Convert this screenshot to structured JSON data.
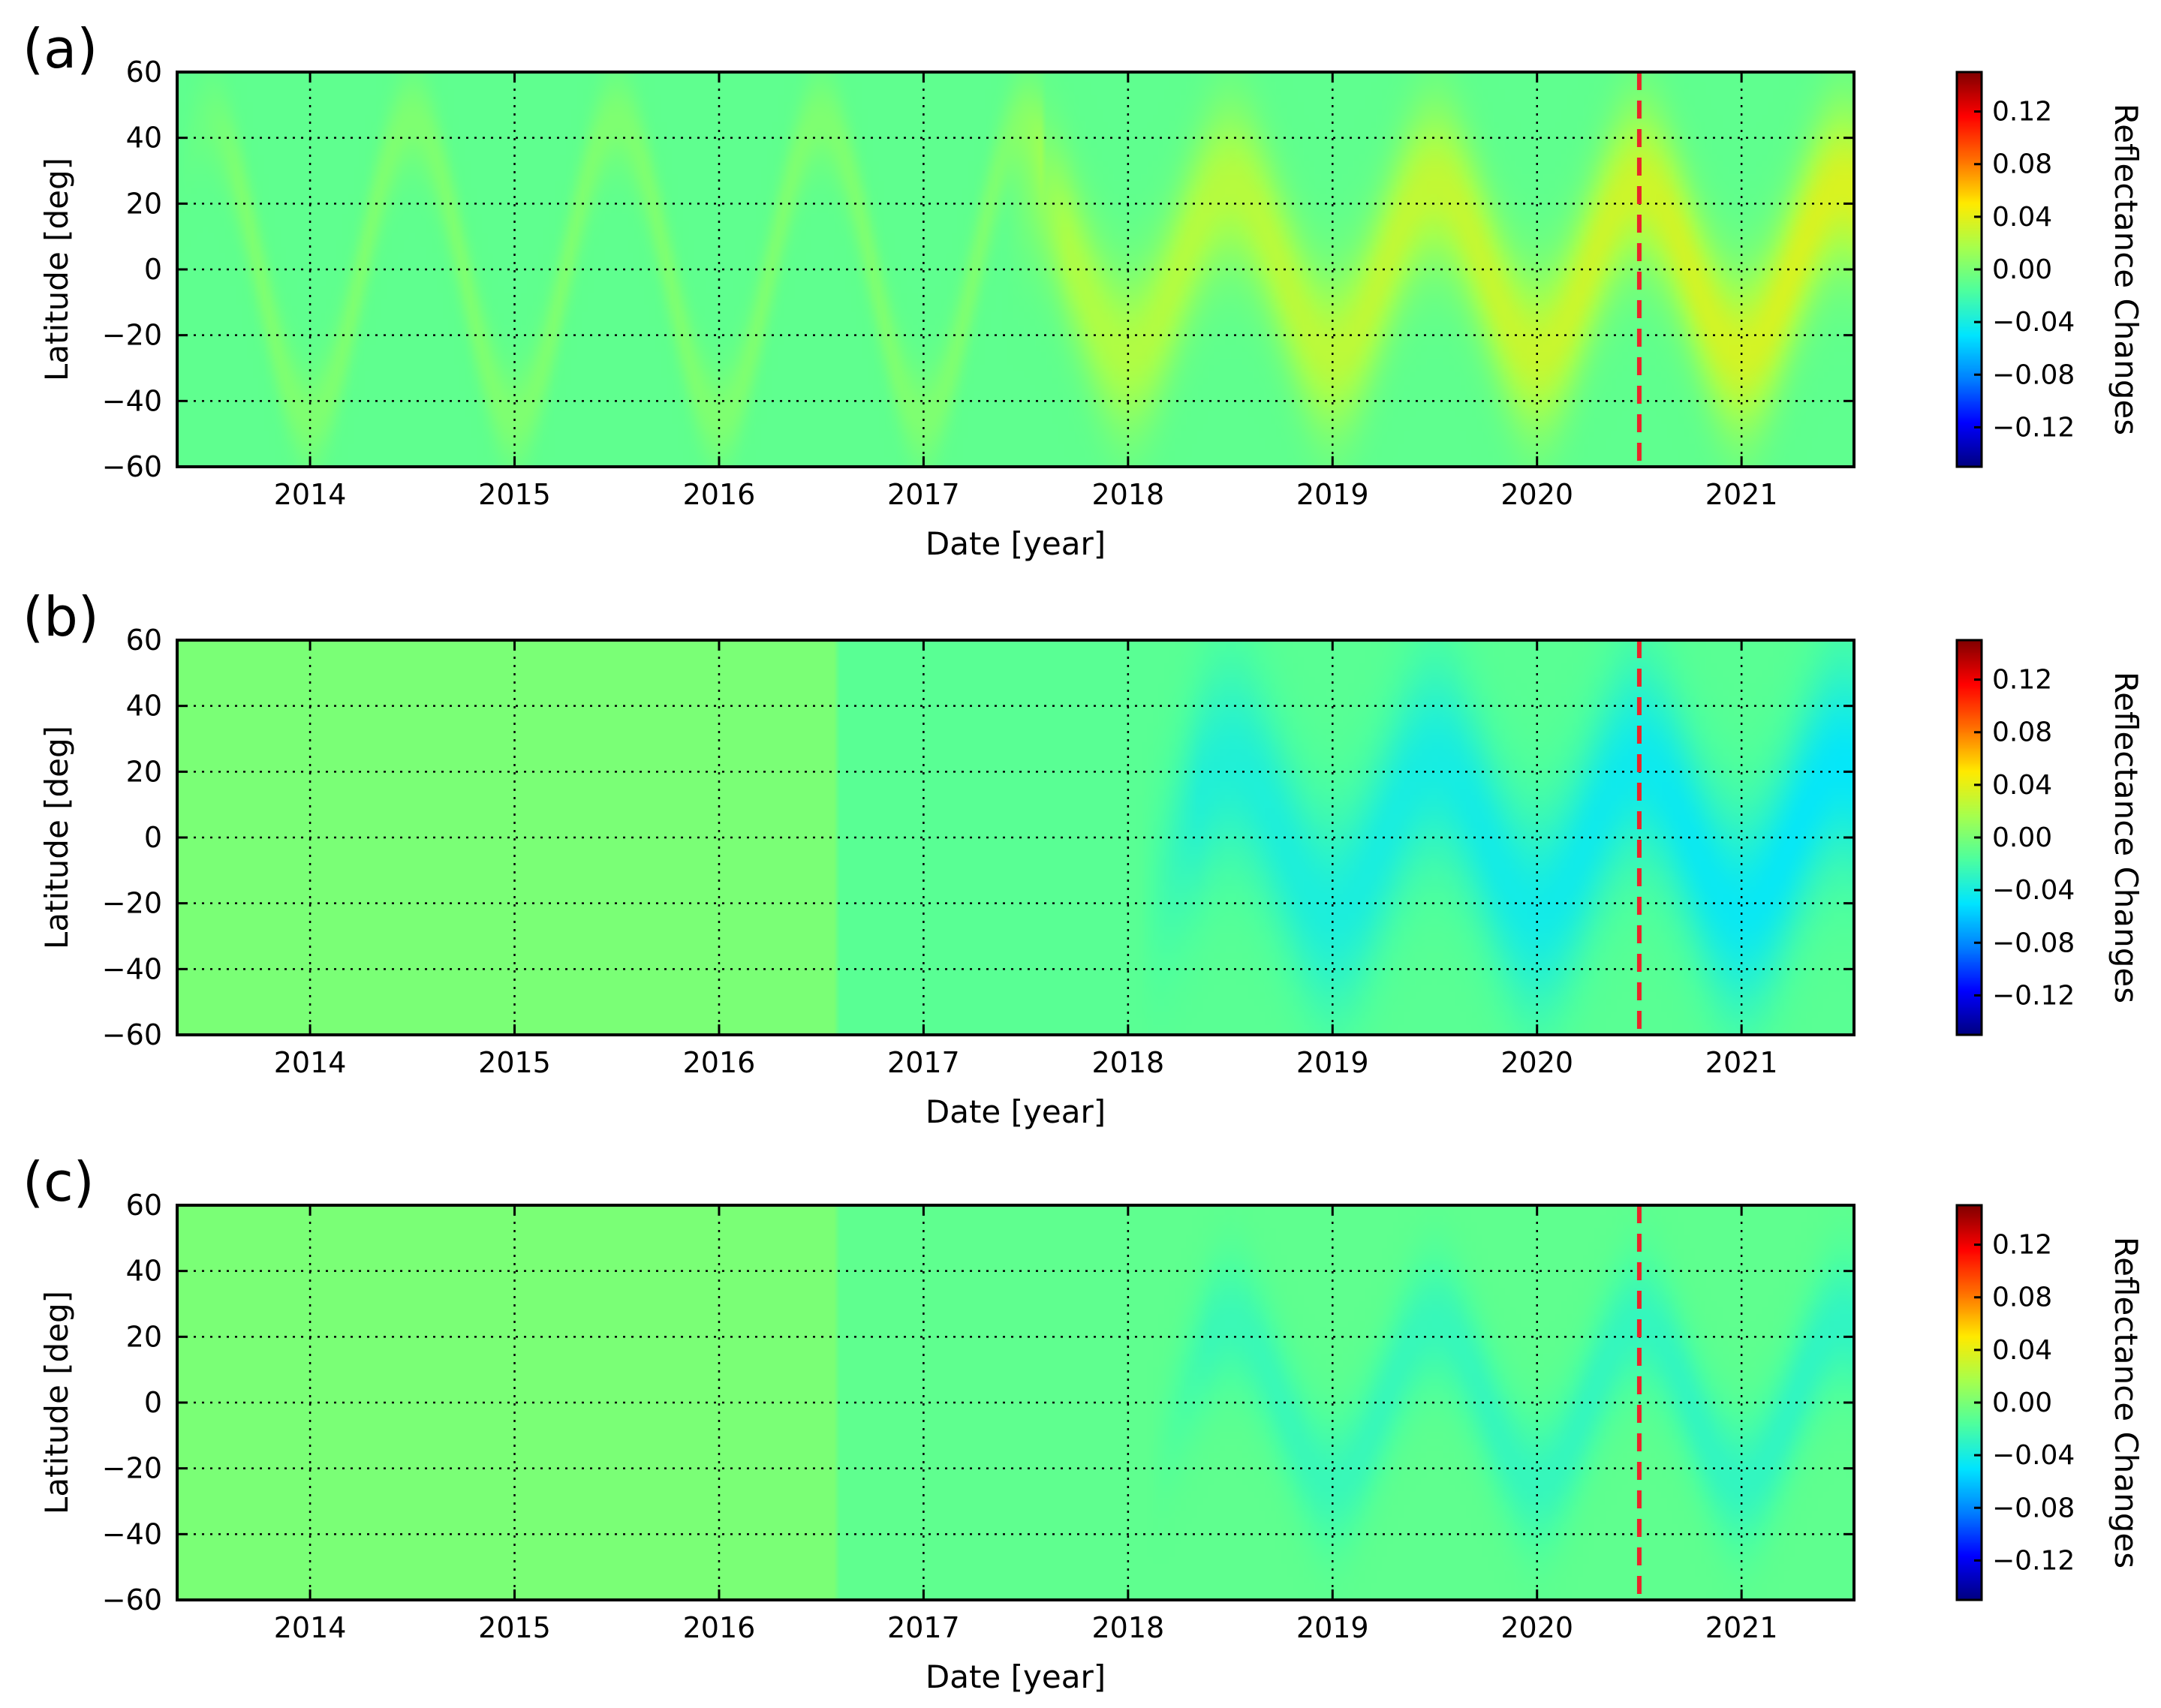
{
  "colors": {
    "colormap": [
      "#000080",
      "#0000ff",
      "#0080ff",
      "#00e5ff",
      "#4dff9f",
      "#a6ff4d",
      "#ffea00",
      "#ff7000",
      "#ff0000",
      "#800000"
    ],
    "reference_line": "#e8262a",
    "grid": "#000000"
  },
  "chart_data": [
    {
      "type": "heatmap",
      "panel_label": "(a)",
      "xlabel": "Date [year]",
      "ylabel": "Latitude [deg]",
      "xlim": [
        2013.35,
        2021.55
      ],
      "ylim": [
        -60,
        60
      ],
      "x_ticks": [
        2014,
        2015,
        2016,
        2017,
        2018,
        2019,
        2020,
        2021
      ],
      "x_tick_labels": [
        "2014",
        "2015",
        "2016",
        "2017",
        "2018",
        "2019",
        "2020",
        "2021"
      ],
      "y_ticks": [
        60,
        40,
        20,
        0,
        -20,
        -40,
        -60
      ],
      "y_tick_labels": [
        "60",
        "40",
        "20",
        "0",
        "−20",
        "−40",
        "−60"
      ],
      "reference_line_x": 2020.5,
      "grid": true,
      "colorbar": {
        "label": "Reflectance Changes",
        "range": [
          -0.15,
          0.15
        ],
        "ticks": [
          0.12,
          0.08,
          0.04,
          0.0,
          -0.04,
          -0.08,
          -0.12
        ],
        "tick_labels": [
          "0.12",
          "0.08",
          "0.04",
          "0.00",
          "−0.04",
          "−0.08",
          "−0.12"
        ]
      },
      "background_value": -0.01,
      "features": [
        {
          "kind": "seasonal_band",
          "x_start": 2013.35,
          "x_end": 2017.6,
          "amplitude_deg": 45,
          "width_deg": 10,
          "peak_value": 0.012,
          "growth": 0.0
        },
        {
          "kind": "seasonal_band",
          "x_start": 2017.4,
          "x_end": 2021.55,
          "amplitude_deg": 25,
          "width_deg": 17,
          "peak_value": 0.028,
          "growth": 0.018
        }
      ]
    },
    {
      "type": "heatmap",
      "panel_label": "(b)",
      "xlabel": "Date [year]",
      "ylabel": "Latitude [deg]",
      "xlim": [
        2013.35,
        2021.55
      ],
      "ylim": [
        -60,
        60
      ],
      "x_ticks": [
        2014,
        2015,
        2016,
        2017,
        2018,
        2019,
        2020,
        2021
      ],
      "x_tick_labels": [
        "2014",
        "2015",
        "2016",
        "2017",
        "2018",
        "2019",
        "2020",
        "2021"
      ],
      "y_ticks": [
        60,
        40,
        20,
        0,
        -20,
        -40,
        -60
      ],
      "y_tick_labels": [
        "60",
        "40",
        "20",
        "0",
        "−20",
        "−40",
        "−60"
      ],
      "reference_line_x": 2020.5,
      "grid": true,
      "colorbar": {
        "label": "Reflectance Changes",
        "range": [
          -0.15,
          0.15
        ],
        "ticks": [
          0.12,
          0.08,
          0.04,
          0.0,
          -0.04,
          -0.08,
          -0.12
        ],
        "tick_labels": [
          "0.12",
          "0.08",
          "0.04",
          "0.00",
          "−0.04",
          "−0.08",
          "−0.12"
        ]
      },
      "background_value": -0.012,
      "early_period": {
        "x_end": 2016.57,
        "value": 0.0
      },
      "features": [
        {
          "kind": "seasonal_band",
          "x_start": 2018.05,
          "x_end": 2021.55,
          "amplitude_deg": 22,
          "width_deg": 22,
          "peak_value": -0.022,
          "growth": -0.014
        }
      ]
    },
    {
      "type": "heatmap",
      "panel_label": "(c)",
      "xlabel": "Date [year]",
      "ylabel": "Latitude [deg]",
      "xlim": [
        2013.35,
        2021.55
      ],
      "ylim": [
        -60,
        60
      ],
      "x_ticks": [
        2014,
        2015,
        2016,
        2017,
        2018,
        2019,
        2020,
        2021
      ],
      "x_tick_labels": [
        "2014",
        "2015",
        "2016",
        "2017",
        "2018",
        "2019",
        "2020",
        "2021"
      ],
      "y_ticks": [
        60,
        40,
        20,
        0,
        -20,
        -40,
        -60
      ],
      "y_tick_labels": [
        "60",
        "40",
        "20",
        "0",
        "−20",
        "−40",
        "−60"
      ],
      "reference_line_x": 2020.5,
      "grid": true,
      "colorbar": {
        "label": "Reflectance Changes",
        "range": [
          -0.15,
          0.15
        ],
        "ticks": [
          0.12,
          0.08,
          0.04,
          0.0,
          -0.04,
          -0.08,
          -0.12
        ],
        "tick_labels": [
          "0.12",
          "0.08",
          "0.04",
          "0.00",
          "−0.04",
          "−0.08",
          "−0.12"
        ]
      },
      "background_value": -0.01,
      "early_period": {
        "x_end": 2016.57,
        "value": 0.0
      },
      "features": [
        {
          "kind": "seasonal_band",
          "x_start": 2018.1,
          "x_end": 2021.55,
          "amplitude_deg": 24,
          "width_deg": 14,
          "peak_value": -0.014,
          "growth": -0.005
        }
      ]
    }
  ]
}
